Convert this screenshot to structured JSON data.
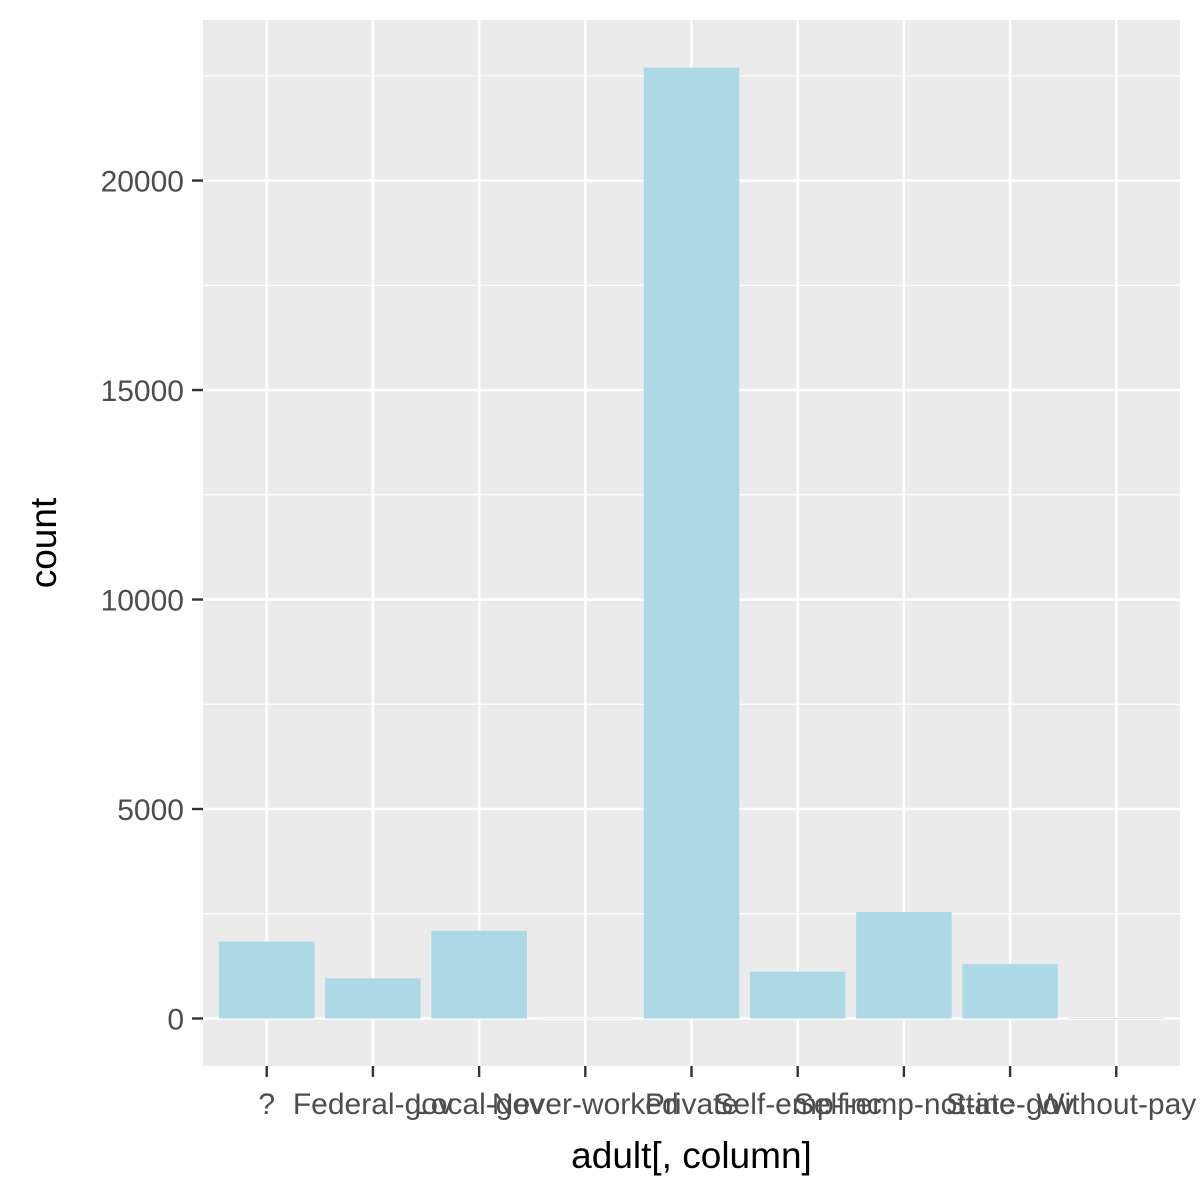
{
  "chart_data": {
    "type": "bar",
    "xlabel": "adult[, column]",
    "ylabel": "count",
    "categories": [
      "?",
      "Federal-gov",
      "Local-gov",
      "Never-worked",
      "Private",
      "Self-emp-inc",
      "Self-emp-not-inc",
      "State-gov",
      "Without-pay"
    ],
    "values": [
      1836,
      960,
      2093,
      7,
      22696,
      1116,
      2541,
      1298,
      14
    ],
    "ylim": [
      -1134,
      23832
    ],
    "yticks": [
      0,
      5000,
      10000,
      15000,
      20000
    ],
    "ytick_labels": [
      "0",
      "5000",
      "10000",
      "15000",
      "20000"
    ],
    "grid": true,
    "legend": "none",
    "colors": {
      "bar_fill": "#add8e6",
      "panel_background": "#ebebeb",
      "grid_line": "#ffffff",
      "tick_text": "#4d4d4d",
      "tick_mark": "#333333",
      "axis_title": "#000000"
    }
  }
}
